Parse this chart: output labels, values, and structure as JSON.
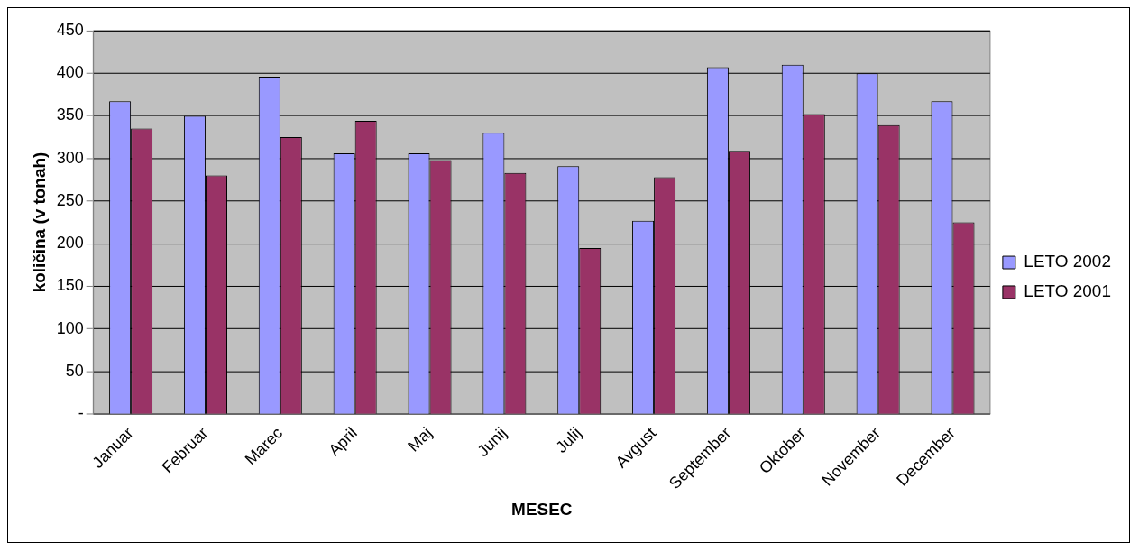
{
  "chart_data": {
    "type": "bar",
    "xlabel": "MESEC",
    "ylabel": "količina (v tonah)",
    "categories": [
      "Januar",
      "Februar",
      "Marec",
      "April",
      "Maj",
      "Junij",
      "Julij",
      "Avgust",
      "September",
      "Oktober",
      "November",
      "December"
    ],
    "series": [
      {
        "name": "LETO 2002",
        "color": "#9999ff",
        "values": [
          367,
          350,
          396,
          306,
          306,
          330,
          291,
          227,
          407,
          410,
          400,
          367
        ]
      },
      {
        "name": "LETO 2001",
        "color": "#993366",
        "values": [
          335,
          280,
          325,
          344,
          298,
          283,
          195,
          278,
          309,
          352,
          339,
          225
        ]
      }
    ],
    "ylim": [
      0,
      450
    ],
    "yticks": [
      {
        "value": 0,
        "label": "-"
      },
      50,
      100,
      150,
      200,
      250,
      300,
      350,
      400,
      450
    ],
    "grid": "y",
    "legend": "right"
  }
}
